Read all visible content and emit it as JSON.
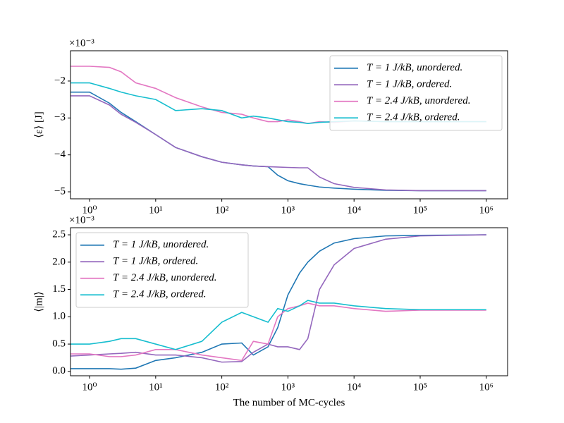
{
  "chart_data": [
    {
      "type": "line",
      "xscale": "log",
      "offset_text": "×10⁻³",
      "ylabel": "⟨ε⟩  [J]",
      "legend": "upper right",
      "xlim": [
        0.515,
        2100000
      ],
      "ylim": [
        -5.19,
        -1.18
      ],
      "xticks": [
        {
          "value": 1,
          "label": "10⁰"
        },
        {
          "value": 10,
          "label": "10¹"
        },
        {
          "value": 100,
          "label": "10²"
        },
        {
          "value": 1000,
          "label": "10³"
        },
        {
          "value": 10000,
          "label": "10⁴"
        },
        {
          "value": 100000,
          "label": "10⁵"
        },
        {
          "value": 1000000,
          "label": "10⁶"
        }
      ],
      "yticks": [
        {
          "value": -5,
          "label": "−5"
        },
        {
          "value": -4,
          "label": "−4"
        },
        {
          "value": -3,
          "label": "−3"
        },
        {
          "value": -2,
          "label": "−2"
        }
      ],
      "x": [
        0.5,
        1,
        2,
        3,
        5,
        10,
        20,
        50,
        100,
        200,
        300,
        500,
        700,
        1000,
        1500,
        2000,
        3000,
        5000,
        10000,
        30000,
        100000,
        1000000
      ],
      "series": [
        {
          "name": "T = 1 J/kB, unordered.",
          "color": "#1f77b4",
          "values": [
            -2.3,
            -2.3,
            -2.6,
            -2.85,
            -3.1,
            -3.45,
            -3.8,
            -4.05,
            -4.2,
            -4.27,
            -4.3,
            -4.32,
            -4.55,
            -4.7,
            -4.78,
            -4.82,
            -4.87,
            -4.9,
            -4.93,
            -4.96,
            -4.97,
            -4.97
          ]
        },
        {
          "name": "T = 1 J/kB, ordered.",
          "color": "#9467bd",
          "values": [
            -2.4,
            -2.4,
            -2.65,
            -2.9,
            -3.12,
            -3.45,
            -3.8,
            -4.05,
            -4.2,
            -4.27,
            -4.3,
            -4.32,
            -4.33,
            -4.34,
            -4.35,
            -4.35,
            -4.6,
            -4.78,
            -4.88,
            -4.95,
            -4.97,
            -4.97
          ]
        },
        {
          "name": "T = 2.4 J/kB, unordered.",
          "color": "#e377c2",
          "values": [
            -1.6,
            -1.6,
            -1.63,
            -1.75,
            -2.05,
            -2.2,
            -2.45,
            -2.7,
            -2.85,
            -2.9,
            -3.0,
            -3.1,
            -3.1,
            -3.05,
            -3.1,
            -3.15,
            -3.1,
            -3.12,
            -3.08,
            -3.1,
            -3.1,
            -3.1
          ]
        },
        {
          "name": "T = 2.4 J/kB, ordered.",
          "color": "#17becf",
          "values": [
            -2.05,
            -2.05,
            -2.2,
            -2.3,
            -2.4,
            -2.5,
            -2.8,
            -2.75,
            -2.8,
            -3.0,
            -2.95,
            -3.0,
            -3.05,
            -3.1,
            -3.12,
            -3.15,
            -3.12,
            -3.1,
            -3.08,
            -3.1,
            -3.1,
            -3.1
          ]
        }
      ]
    },
    {
      "type": "line",
      "xscale": "log",
      "offset_text": "×10⁻³",
      "ylabel": "⟨|m|⟩",
      "xlabel": "The number of MC-cycles",
      "legend": "upper left",
      "xlim": [
        0.515,
        2100000
      ],
      "ylim": [
        -0.08,
        2.63
      ],
      "xticks": [
        {
          "value": 1,
          "label": "10⁰"
        },
        {
          "value": 10,
          "label": "10¹"
        },
        {
          "value": 100,
          "label": "10²"
        },
        {
          "value": 1000,
          "label": "10³"
        },
        {
          "value": 10000,
          "label": "10⁴"
        },
        {
          "value": 100000,
          "label": "10⁵"
        },
        {
          "value": 1000000,
          "label": "10⁶"
        }
      ],
      "yticks": [
        {
          "value": 0,
          "label": "0.0"
        },
        0.5,
        {
          "value": 1,
          "label": "1.0"
        },
        1.5,
        {
          "value": 2,
          "label": "2.0"
        },
        2.5
      ],
      "x": [
        0.5,
        1,
        2,
        3,
        5,
        10,
        20,
        50,
        100,
        200,
        300,
        500,
        700,
        1000,
        1500,
        2000,
        3000,
        5000,
        10000,
        30000,
        100000,
        1000000
      ],
      "series": [
        {
          "name": "T = 1 J/kB, unordered.",
          "color": "#1f77b4",
          "values": [
            0.05,
            0.05,
            0.05,
            0.04,
            0.06,
            0.2,
            0.25,
            0.35,
            0.5,
            0.52,
            0.3,
            0.45,
            0.8,
            1.4,
            1.8,
            2.0,
            2.2,
            2.35,
            2.43,
            2.48,
            2.49,
            2.5
          ]
        },
        {
          "name": "T = 1 J/kB, ordered.",
          "color": "#9467bd",
          "values": [
            0.28,
            0.3,
            0.32,
            0.33,
            0.35,
            0.3,
            0.3,
            0.25,
            0.17,
            0.18,
            0.35,
            0.5,
            0.45,
            0.45,
            0.4,
            0.6,
            1.5,
            1.95,
            2.25,
            2.42,
            2.48,
            2.5
          ]
        },
        {
          "name": "T = 2.4 J/kB, unordered.",
          "color": "#e377c2",
          "values": [
            0.32,
            0.32,
            0.27,
            0.27,
            0.3,
            0.4,
            0.4,
            0.3,
            0.25,
            0.2,
            0.55,
            0.5,
            1.0,
            1.15,
            1.2,
            1.25,
            1.2,
            1.2,
            1.15,
            1.1,
            1.12,
            1.12
          ]
        },
        {
          "name": "T = 2.4 J/kB, ordered.",
          "color": "#17becf",
          "values": [
            0.5,
            0.5,
            0.55,
            0.6,
            0.6,
            0.5,
            0.4,
            0.55,
            0.9,
            1.08,
            1.0,
            0.9,
            1.15,
            1.1,
            1.2,
            1.3,
            1.25,
            1.25,
            1.2,
            1.15,
            1.13,
            1.13
          ]
        }
      ]
    }
  ]
}
